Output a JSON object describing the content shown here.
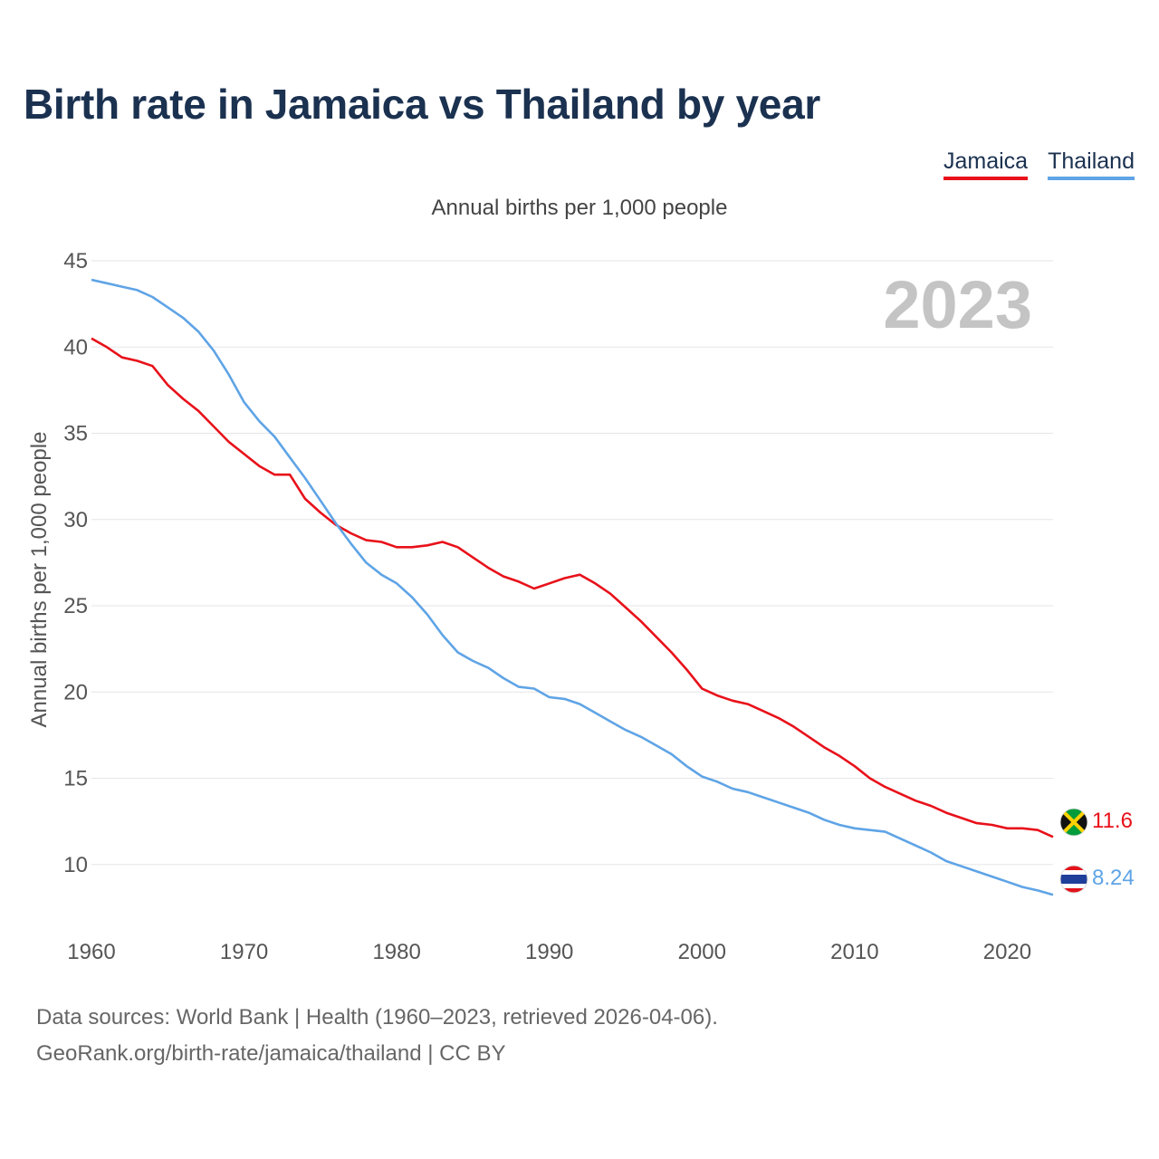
{
  "page": {
    "title": "Birth rate in Jamaica vs Thailand by year",
    "subtitle": "Annual births per 1,000 people",
    "source_line": "Data sources: World Bank | Health (1960–2023, retrieved 2026-04-06).",
    "credit_line": "GeoRank.org/birth-rate/jamaica/thailand | CC BY"
  },
  "legend": [
    {
      "name": "Jamaica",
      "color": "#e8111a"
    },
    {
      "name": "Thailand",
      "color": "#5fa4e6"
    }
  ],
  "chart_data": {
    "type": "line",
    "title": "Birth rate in Jamaica vs Thailand by year",
    "subtitle": "Annual births per 1,000 people",
    "xlabel": "",
    "ylabel": "Annual births per 1,000 people",
    "year_label": "2023",
    "xlim": [
      1960,
      2023
    ],
    "ylim": [
      6,
      45
    ],
    "yticks": [
      10,
      15,
      20,
      25,
      30,
      35,
      40,
      45
    ],
    "xticks": [
      1960,
      1970,
      1980,
      1990,
      2000,
      2010,
      2020
    ],
    "grid": true,
    "legend_position": "top-right",
    "x": [
      1960,
      1961,
      1962,
      1963,
      1964,
      1965,
      1966,
      1967,
      1968,
      1969,
      1970,
      1971,
      1972,
      1973,
      1974,
      1975,
      1976,
      1977,
      1978,
      1979,
      1980,
      1981,
      1982,
      1983,
      1984,
      1985,
      1986,
      1987,
      1988,
      1989,
      1990,
      1991,
      1992,
      1993,
      1994,
      1995,
      1996,
      1997,
      1998,
      1999,
      2000,
      2001,
      2002,
      2003,
      2004,
      2005,
      2006,
      2007,
      2008,
      2009,
      2010,
      2011,
      2012,
      2013,
      2014,
      2015,
      2016,
      2017,
      2018,
      2019,
      2020,
      2021,
      2022,
      2023
    ],
    "series": [
      {
        "name": "Jamaica",
        "color": "#e8111a",
        "end_label": "11.6",
        "values": [
          40.5,
          40.0,
          39.4,
          39.2,
          38.9,
          37.8,
          37.0,
          36.3,
          35.4,
          34.5,
          33.8,
          33.1,
          32.6,
          32.6,
          31.2,
          30.4,
          29.7,
          29.2,
          28.8,
          28.7,
          28.4,
          28.4,
          28.5,
          28.7,
          28.4,
          27.8,
          27.2,
          26.7,
          26.4,
          26.0,
          26.3,
          26.6,
          26.8,
          26.3,
          25.7,
          24.9,
          24.1,
          23.2,
          22.3,
          21.3,
          20.2,
          19.8,
          19.5,
          19.3,
          18.9,
          18.5,
          18.0,
          17.4,
          16.8,
          16.3,
          15.7,
          15.0,
          14.5,
          14.1,
          13.7,
          13.4,
          13.0,
          12.7,
          12.4,
          12.3,
          12.1,
          12.1,
          12.0,
          11.6
        ]
      },
      {
        "name": "Thailand",
        "color": "#5fa4e6",
        "end_label": "8.24",
        "values": [
          43.9,
          43.7,
          43.5,
          43.3,
          42.9,
          42.3,
          41.7,
          40.9,
          39.8,
          38.4,
          36.8,
          35.7,
          34.8,
          33.6,
          32.4,
          31.1,
          29.8,
          28.6,
          27.5,
          26.8,
          26.3,
          25.5,
          24.5,
          23.3,
          22.3,
          21.8,
          21.4,
          20.8,
          20.3,
          20.2,
          19.7,
          19.6,
          19.3,
          18.8,
          18.3,
          17.8,
          17.4,
          16.9,
          16.4,
          15.7,
          15.1,
          14.8,
          14.4,
          14.2,
          13.9,
          13.6,
          13.3,
          13.0,
          12.6,
          12.3,
          12.1,
          12.0,
          11.9,
          11.5,
          11.1,
          10.7,
          10.2,
          9.9,
          9.6,
          9.3,
          9.0,
          8.7,
          8.5,
          8.24
        ]
      }
    ]
  }
}
